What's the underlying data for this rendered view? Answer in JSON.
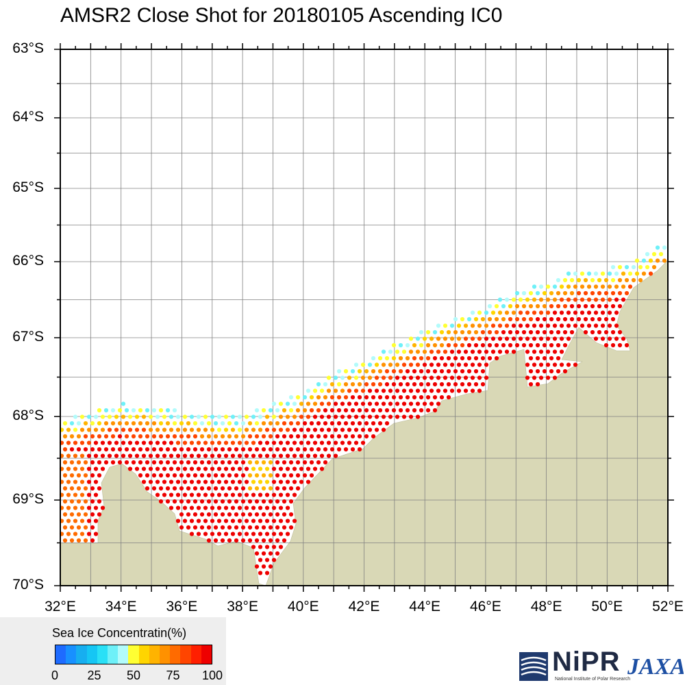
{
  "title": "AMSR2 Close Shot for 20180105 Ascending IC0",
  "map": {
    "lon_range": [
      32,
      52
    ],
    "lat_range": [
      -70,
      -63
    ],
    "lat_labels": [
      "63°S",
      "64°S",
      "65°S",
      "66°S",
      "67°S",
      "68°S",
      "69°S",
      "70°S"
    ],
    "lon_labels": [
      "32°E",
      "34°E",
      "36°E",
      "38°E",
      "40°E",
      "42°E",
      "44°E",
      "46°E",
      "48°E",
      "50°E",
      "52°E"
    ],
    "land_color": "#d9d8b6",
    "grid_color": "#808080",
    "ice_edge_lat_by_lon": [
      [
        32,
        -68.1
      ],
      [
        33,
        -68.0
      ],
      [
        34,
        -67.9
      ],
      [
        36,
        -68.0
      ],
      [
        37,
        -68.05
      ],
      [
        38,
        -68.05
      ],
      [
        39,
        -67.9
      ],
      [
        40,
        -67.75
      ],
      [
        41,
        -67.5
      ],
      [
        42,
        -67.35
      ],
      [
        43,
        -67.15
      ],
      [
        44,
        -66.95
      ],
      [
        45,
        -66.8
      ],
      [
        46,
        -66.65
      ],
      [
        47,
        -66.45
      ],
      [
        48,
        -66.35
      ],
      [
        49,
        -66.15
      ],
      [
        50,
        -66.15
      ],
      [
        51,
        -66.05
      ],
      [
        52,
        -65.75
      ]
    ]
  },
  "legend": {
    "title": "Sea Ice Concentratin(%)",
    "ticks": [
      "0",
      "25",
      "50",
      "75",
      "100"
    ],
    "colors": [
      "#1e6bff",
      "#1890ff",
      "#17aef0",
      "#16c6f4",
      "#2ae0f6",
      "#6ef0f8",
      "#b2fbfb",
      "#ffff33",
      "#ffd500",
      "#ffb300",
      "#ff9100",
      "#ff6b00",
      "#ff4500",
      "#ff1f00",
      "#ee0000"
    ]
  },
  "logos": {
    "nipr": "NiPR",
    "nipr_sub": "National Institute of Polar Research",
    "jaxa": "JAXA"
  }
}
